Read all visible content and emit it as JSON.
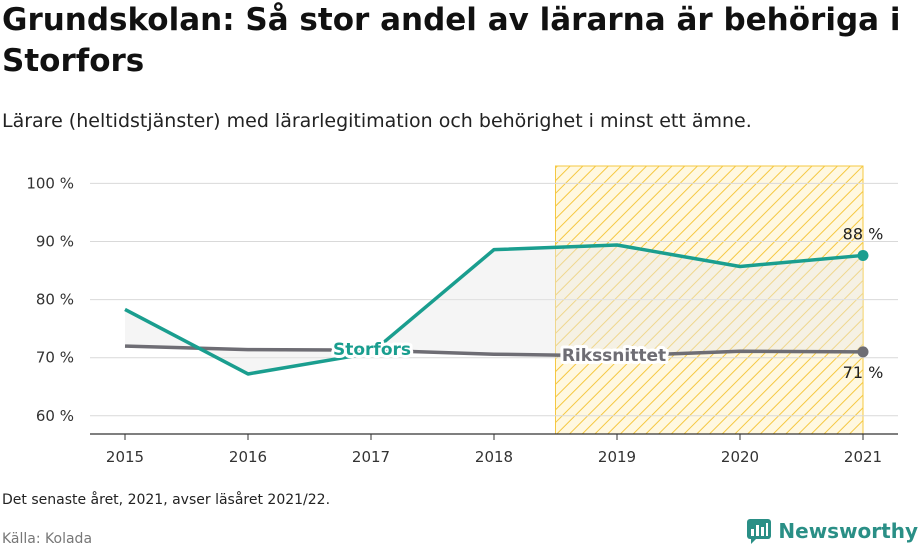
{
  "header": {
    "title": "Grundskolan: Så stor andel av lärarna är behöriga i Storfors",
    "subtitle": "Lärare (heltidstjänster) med lärarlegitimation och behörighet i minst ett ämne."
  },
  "footer": {
    "note": "Det senaste året, 2021, avser läsåret 2021/22.",
    "source": "Källa: Kolada",
    "brand": "Newsworthy"
  },
  "colors": {
    "storfors": "#1a9e8f",
    "riket": "#6e6d74",
    "highlight": "#f5c842",
    "brand": "#2a8f86"
  },
  "chart_data": {
    "type": "line",
    "title": "Grundskolan: Så stor andel av lärarna är behöriga i Storfors",
    "categories": [
      "2015",
      "2016",
      "2017",
      "2018",
      "2019",
      "2020",
      "2021"
    ],
    "y_ticks": [
      "60 %",
      "70 %",
      "80 %",
      "90 %",
      "100 %"
    ],
    "ylim": [
      58,
      103
    ],
    "grid": true,
    "highlight_range": [
      "2018.5",
      "2021"
    ],
    "series": [
      {
        "name": "Storfors",
        "values": [
          78.3,
          67.2,
          70.8,
          88.6,
          89.4,
          85.7,
          87.6
        ],
        "end_label": "88 %"
      },
      {
        "name": "Rikssnittet",
        "values": [
          72.0,
          71.4,
          71.3,
          70.6,
          70.3,
          71.1,
          71.0
        ],
        "end_label": "71 %"
      }
    ]
  }
}
